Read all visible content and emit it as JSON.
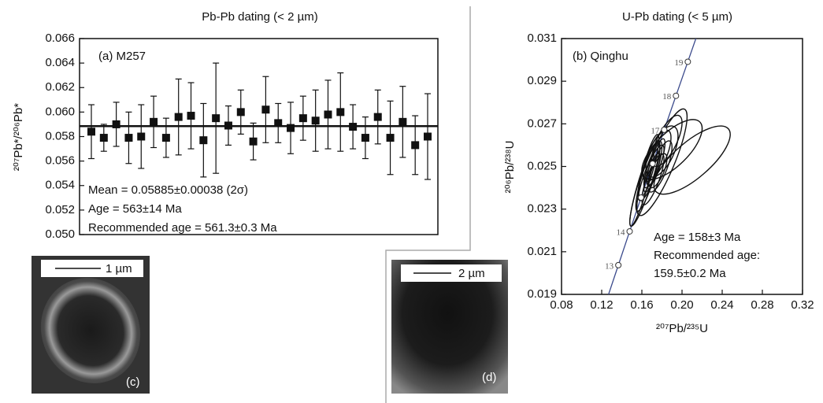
{
  "chart_data": [
    {
      "type": "errorbar",
      "title": "Pb-Pb dating (< 2 µm)",
      "ylabel": "²⁰⁷Pb*/²⁰⁶Pb*",
      "values": [
        0.0584,
        0.0579,
        0.059,
        0.0579,
        0.058,
        0.0592,
        0.0579,
        0.0596,
        0.0597,
        0.0577,
        0.0595,
        0.0589,
        0.06,
        0.0576,
        0.0602,
        0.0591,
        0.0587,
        0.0595,
        0.0593,
        0.0598,
        0.06,
        0.0588,
        0.0579,
        0.0596,
        0.0579,
        0.0592,
        0.0573,
        0.058
      ],
      "errors": [
        0.0022,
        0.0011,
        0.0018,
        0.0021,
        0.0026,
        0.0021,
        0.0016,
        0.0031,
        0.0027,
        0.003,
        0.0045,
        0.0016,
        0.0018,
        0.0015,
        0.0027,
        0.0016,
        0.0021,
        0.0018,
        0.0025,
        0.0028,
        0.0032,
        0.0018,
        0.0017,
        0.0022,
        0.003,
        0.0029,
        0.0024,
        0.0035
      ],
      "mean": 0.05885,
      "color": "#111111",
      "ylim": [
        0.05,
        0.066
      ],
      "yticks": [
        {
          "value": 0.05,
          "label": "0.050"
        },
        {
          "value": 0.052,
          "label": "0.052"
        },
        {
          "value": 0.054,
          "label": "0.054"
        },
        {
          "value": 0.056,
          "label": "0.056"
        },
        {
          "value": 0.058,
          "label": "0.058"
        },
        {
          "value": 0.06,
          "label": "0.060"
        },
        {
          "value": 0.062,
          "label": "0.062"
        },
        {
          "value": 0.064,
          "label": "0.064"
        },
        {
          "value": 0.066,
          "label": "0.066"
        }
      ],
      "annotations": [
        "(a) M257",
        "Mean = 0.05885±0.00038 (2σ)",
        "Age = 563±14 Ma",
        "Recommended age = 561.3±0.3 Ma"
      ]
    },
    {
      "type": "concordia",
      "title": "U-Pb dating (< 5 µm)",
      "xlabel": "²⁰⁷Pb/²³⁵U",
      "ylabel": "²⁰⁶Pb/²³⁸U",
      "concordia": {
        "color": "#3b4a8c",
        "x": [
          0.13658,
          0.14784,
          0.1592,
          0.17068,
          0.18225,
          0.19396,
          0.20576
        ],
        "y": [
          0.020371,
          0.021955,
          0.023542,
          0.025131,
          0.026722,
          0.028316,
          0.029912
        ],
        "labels": [
          "13",
          "14",
          null,
          null,
          "17",
          "18",
          "19"
        ]
      },
      "ellipses": {
        "x": [
          0.21,
          0.18,
          0.19,
          0.168,
          0.172,
          0.166,
          0.175,
          0.17,
          0.178,
          0.163,
          0.174,
          0.167,
          0.18,
          0.171,
          0.176,
          0.16,
          0.185
        ],
        "y": [
          0.0253,
          0.0252,
          0.0258,
          0.0248,
          0.025,
          0.0245,
          0.0255,
          0.0247,
          0.025,
          0.0242,
          0.0252,
          0.025,
          0.0257,
          0.0244,
          0.0248,
          0.024,
          0.0262
        ],
        "x_err": [
          0.038,
          0.025,
          0.03,
          0.012,
          0.01,
          0.012,
          0.014,
          0.008,
          0.012,
          0.015,
          0.009,
          0.01,
          0.016,
          0.011,
          0.009,
          0.012,
          0.015
        ],
        "y_err": [
          0.0016,
          0.0025,
          0.0014,
          0.0014,
          0.001,
          0.0016,
          0.0012,
          0.0009,
          0.0012,
          0.002,
          0.0011,
          0.0015,
          0.0012,
          0.0012,
          0.0008,
          0.0018,
          0.0012
        ],
        "rho": [
          0.75,
          0.85,
          0.7,
          0.8,
          0.8,
          0.85,
          0.7,
          0.8,
          0.75,
          0.9,
          0.8,
          0.85,
          0.6,
          0.8,
          0.7,
          0.9,
          0.7
        ]
      },
      "xlim": [
        0.08,
        0.32
      ],
      "xticks": [
        0.08,
        0.12,
        0.16,
        {
          "value": 0.2,
          "label": "0.20"
        },
        0.24,
        0.28,
        0.32
      ],
      "ylim": [
        0.019,
        0.031
      ],
      "yticks": [
        0.019,
        0.021,
        0.023,
        0.025,
        0.027,
        0.029,
        0.031
      ],
      "annotations": [
        "(b) Qinghu",
        "Age = 158±3 Ma",
        "Recommended age:",
        "159.5±0.2 Ma"
      ]
    }
  ],
  "images": [
    {
      "scale": "1 µm",
      "label": "(c)"
    },
    {
      "scale": "2 µm",
      "label": "(d)"
    }
  ]
}
